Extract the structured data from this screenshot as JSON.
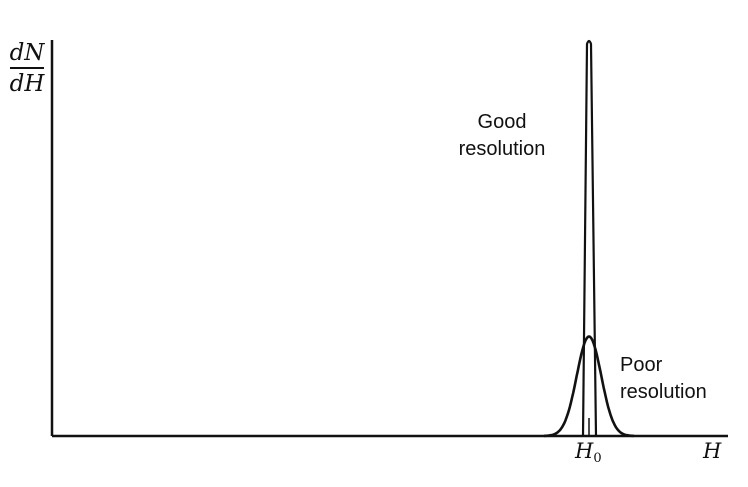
{
  "figure": {
    "y_label": {
      "numerator": "dN",
      "denominator": "dH"
    },
    "x_label": "H",
    "x_tick": {
      "base": "H",
      "sub": "0"
    },
    "curves": [
      {
        "label_lines": [
          "Good",
          "resolution"
        ],
        "peak": 1.0,
        "width": 0.06
      },
      {
        "label_lines": [
          "Poor",
          "resolution"
        ],
        "peak": 0.25,
        "width": 0.45
      }
    ]
  }
}
